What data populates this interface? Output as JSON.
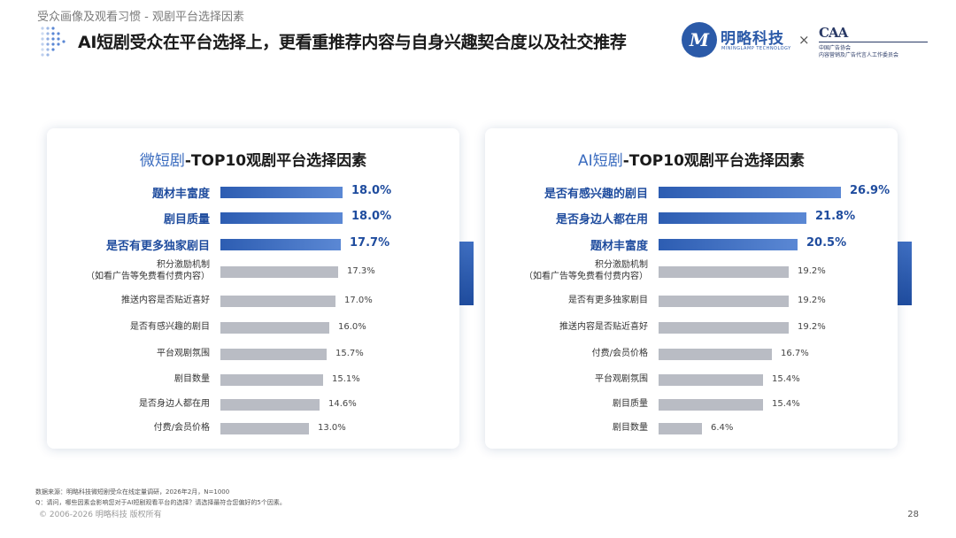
{
  "header": {
    "breadcrumb": "受众画像及观看习惯 - 观剧平台选择因素",
    "headline": "AI短剧受众在平台选择上，更看重推荐内容与自身兴趣契合度以及社交推荐",
    "times_sign": "×",
    "logo_mingl": {
      "mark": "M",
      "name": "明略科技",
      "sub": "MININGLAMP TECHNOLOGY",
      "color": "#2b5aa8"
    },
    "logo_caa": {
      "mark": "CAA",
      "line1": "中国广告协会",
      "line2": "内容营销及广告代言人工作委员会",
      "color": "#2a3a66"
    }
  },
  "chart_data": [
    {
      "type": "bar",
      "orientation": "horizontal",
      "title_highlight": "微短剧",
      "title_rest": "-TOP10观剧平台选择因素",
      "unit": "%",
      "categories": [
        [
          "题材丰富度"
        ],
        [
          "剧目质量"
        ],
        [
          "是否有更多独家剧目"
        ],
        [
          "积分激励机制",
          "（如看广告等免费看付费内容）"
        ],
        [
          "推送内容是否贴近喜好"
        ],
        [
          "是否有感兴趣的剧目"
        ],
        [
          "平台观剧氛围"
        ],
        [
          "剧目数量"
        ],
        [
          "是否身边人都在用"
        ],
        [
          "付费/会员价格"
        ]
      ],
      "values": [
        18.0,
        18.0,
        17.7,
        17.3,
        17.0,
        16.0,
        15.7,
        15.1,
        14.6,
        13.0
      ],
      "value_labels": [
        "18.0%",
        "18.0%",
        "17.7%",
        "17.3%",
        "17.0%",
        "16.0%",
        "15.7%",
        "15.1%",
        "14.6%",
        "13.0%"
      ],
      "highlight_top": 3,
      "colors": {
        "highlight": "#2d5db2",
        "normal": "#b9bcc4",
        "title_highlight": "#3b6cbf"
      }
    },
    {
      "type": "bar",
      "orientation": "horizontal",
      "title_highlight": "AI短剧",
      "title_rest": "-TOP10观剧平台选择因素",
      "unit": "%",
      "categories": [
        [
          "是否有感兴趣的剧目"
        ],
        [
          "是否身边人都在用"
        ],
        [
          "题材丰富度"
        ],
        [
          "积分激励机制",
          "（如看广告等免费看付费内容）"
        ],
        [
          "是否有更多独家剧目"
        ],
        [
          "推送内容是否贴近喜好"
        ],
        [
          "付费/会员价格"
        ],
        [
          "平台观剧氛围"
        ],
        [
          "剧目质量"
        ],
        [
          "剧目数量"
        ]
      ],
      "values": [
        26.9,
        21.8,
        20.5,
        19.2,
        19.2,
        19.2,
        16.7,
        15.4,
        15.4,
        6.4
      ],
      "value_labels": [
        "26.9%",
        "21.8%",
        "20.5%",
        "19.2%",
        "19.2%",
        "19.2%",
        "16.7%",
        "15.4%",
        "15.4%",
        "6.4%"
      ],
      "highlight_top": 3,
      "colors": {
        "highlight": "#2d5db2",
        "normal": "#b9bcc4",
        "title_highlight": "#3b6cbf"
      }
    }
  ],
  "footer": {
    "source": "数据来源：明略科技微短剧受众在线定量调研，2026年2月，N=1000",
    "question": "Q：请问，哪些因素会影响您对于AI短剧观看平台的选择？请选择最符合您偏好的5个因素。",
    "copyright": "© 2006-2026 明略科技 版权所有",
    "page_number": "28"
  }
}
